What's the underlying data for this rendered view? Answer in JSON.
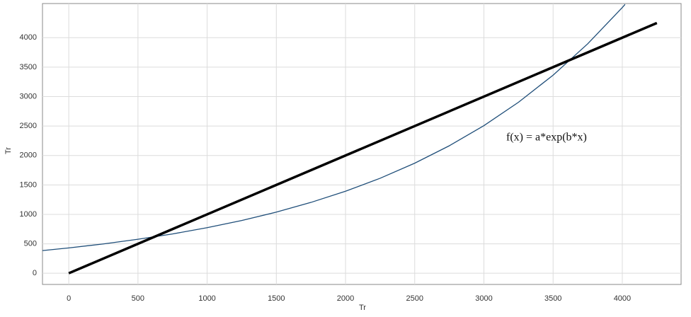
{
  "chart_data": {
    "type": "line",
    "xlabel": "Tr",
    "ylabel": "Tr",
    "annotation": "f(x) = a*exp(b*x)",
    "xlim": [
      -190,
      4425
    ],
    "ylim": [
      -190,
      4580
    ],
    "xticks": [
      0,
      500,
      1000,
      1500,
      2000,
      2500,
      3000,
      3500,
      4000
    ],
    "yticks": [
      0,
      500,
      1000,
      1500,
      2000,
      2500,
      3000,
      3500,
      4000
    ],
    "grid": true,
    "series": [
      {
        "color": "#1f4e79",
        "width": 1.3,
        "x": [
          -190,
          0,
          250,
          500,
          750,
          1000,
          1250,
          1500,
          1750,
          2000,
          2250,
          2500,
          2750,
          3000,
          3250,
          3500,
          3750,
          4000,
          4020
        ],
        "values": [
          385,
          430,
          498,
          577,
          668,
          774,
          896,
          1038,
          1203,
          1393,
          1613,
          1869,
          2165,
          2507,
          2904,
          3364,
          3896,
          4512,
          4566
        ]
      },
      {
        "color": "#000000",
        "width": 3.5,
        "x": [
          0,
          4250
        ],
        "values": [
          0,
          4250
        ]
      }
    ]
  }
}
